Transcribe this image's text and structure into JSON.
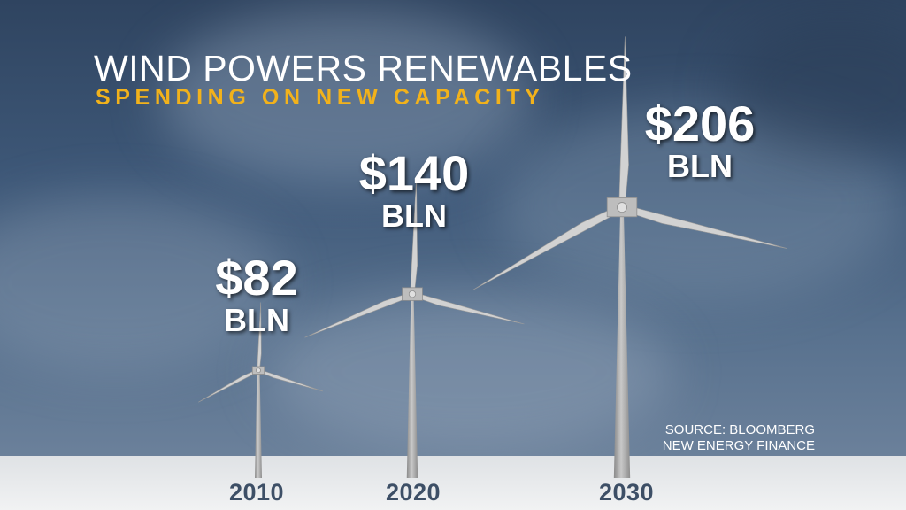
{
  "title": "WIND POWERS RENEWABLES",
  "subtitle": "SPENDING ON NEW CAPACITY",
  "source": {
    "line1": "SOURCE: BLOOMBERG",
    "line2": "NEW ENERGY FINANCE"
  },
  "colors": {
    "title": "#ffffff",
    "subtitle": "#f2b21b",
    "year": "#3d4f66",
    "sky": "#3e5878",
    "ground": "#eceef0",
    "turbine": "#b0b0b0"
  },
  "chart_data": {
    "type": "bar",
    "mark": "wind turbine height proportional to value",
    "categories": [
      "2010",
      "2020",
      "2030"
    ],
    "values": [
      82,
      140,
      206
    ],
    "value_labels": [
      {
        "amount": "$82",
        "unit": "BLN"
      },
      {
        "amount": "$140",
        "unit": "BLN"
      },
      {
        "amount": "$206",
        "unit": "BLN"
      }
    ],
    "title": "WIND POWERS RENEWABLES",
    "subtitle": "SPENDING ON NEW CAPACITY",
    "xlabel": "",
    "ylabel": "",
    "grid": false,
    "legend": "none"
  }
}
